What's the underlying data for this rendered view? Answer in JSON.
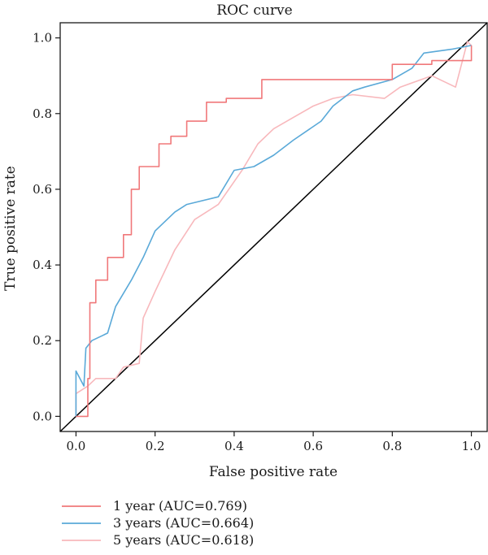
{
  "chart_data": {
    "type": "line",
    "title": "ROC curve",
    "xlabel": "False positive rate",
    "ylabel": "True positive rate",
    "xlim": [
      -0.04,
      1.04
    ],
    "ylim": [
      -0.04,
      1.04
    ],
    "xticks": [
      "0.0",
      "0.2",
      "0.4",
      "0.6",
      "0.8",
      "1.0"
    ],
    "yticks": [
      "0.0",
      "0.2",
      "0.4",
      "0.6",
      "0.8",
      "1.0"
    ],
    "grid": false,
    "legend_position": "bottom-left, below plot",
    "reference_line": {
      "name": "diagonal",
      "points": [
        [
          -0.04,
          -0.04
        ],
        [
          1.04,
          1.04
        ]
      ],
      "color": "#000000"
    },
    "series": [
      {
        "name": "1 year (AUC=0.769)",
        "color": "#f0787a",
        "points": [
          [
            0.0,
            0.0
          ],
          [
            0.03,
            0.0
          ],
          [
            0.03,
            0.1
          ],
          [
            0.035,
            0.1
          ],
          [
            0.035,
            0.3
          ],
          [
            0.05,
            0.3
          ],
          [
            0.05,
            0.36
          ],
          [
            0.08,
            0.36
          ],
          [
            0.08,
            0.42
          ],
          [
            0.12,
            0.42
          ],
          [
            0.12,
            0.48
          ],
          [
            0.14,
            0.48
          ],
          [
            0.14,
            0.6
          ],
          [
            0.16,
            0.6
          ],
          [
            0.16,
            0.66
          ],
          [
            0.21,
            0.66
          ],
          [
            0.21,
            0.72
          ],
          [
            0.24,
            0.72
          ],
          [
            0.24,
            0.74
          ],
          [
            0.28,
            0.74
          ],
          [
            0.28,
            0.78
          ],
          [
            0.33,
            0.78
          ],
          [
            0.33,
            0.83
          ],
          [
            0.38,
            0.83
          ],
          [
            0.38,
            0.84
          ],
          [
            0.47,
            0.84
          ],
          [
            0.47,
            0.89
          ],
          [
            0.8,
            0.89
          ],
          [
            0.8,
            0.93
          ],
          [
            0.9,
            0.93
          ],
          [
            0.9,
            0.94
          ],
          [
            1.0,
            0.94
          ],
          [
            1.0,
            0.98
          ]
        ]
      },
      {
        "name": "3 years (AUC=0.664)",
        "color": "#5aa9d8",
        "points": [
          [
            0.0,
            0.0
          ],
          [
            0.0,
            0.12
          ],
          [
            0.02,
            0.08
          ],
          [
            0.025,
            0.18
          ],
          [
            0.04,
            0.2
          ],
          [
            0.08,
            0.22
          ],
          [
            0.1,
            0.29
          ],
          [
            0.14,
            0.36
          ],
          [
            0.17,
            0.42
          ],
          [
            0.2,
            0.49
          ],
          [
            0.25,
            0.54
          ],
          [
            0.28,
            0.56
          ],
          [
            0.36,
            0.58
          ],
          [
            0.4,
            0.65
          ],
          [
            0.45,
            0.66
          ],
          [
            0.5,
            0.69
          ],
          [
            0.55,
            0.73
          ],
          [
            0.62,
            0.78
          ],
          [
            0.65,
            0.82
          ],
          [
            0.7,
            0.86
          ],
          [
            0.73,
            0.87
          ],
          [
            0.8,
            0.89
          ],
          [
            0.85,
            0.92
          ],
          [
            0.88,
            0.96
          ],
          [
            0.95,
            0.97
          ],
          [
            1.0,
            0.98
          ]
        ]
      },
      {
        "name": "5 years (AUC=0.618)",
        "color": "#f8b8bc",
        "points": [
          [
            0.0,
            0.0
          ],
          [
            0.0,
            0.06
          ],
          [
            0.03,
            0.08
          ],
          [
            0.05,
            0.1
          ],
          [
            0.1,
            0.1
          ],
          [
            0.12,
            0.13
          ],
          [
            0.16,
            0.14
          ],
          [
            0.17,
            0.26
          ],
          [
            0.2,
            0.33
          ],
          [
            0.25,
            0.44
          ],
          [
            0.3,
            0.52
          ],
          [
            0.36,
            0.56
          ],
          [
            0.42,
            0.65
          ],
          [
            0.46,
            0.72
          ],
          [
            0.5,
            0.76
          ],
          [
            0.55,
            0.79
          ],
          [
            0.6,
            0.82
          ],
          [
            0.65,
            0.84
          ],
          [
            0.7,
            0.85
          ],
          [
            0.78,
            0.84
          ],
          [
            0.82,
            0.87
          ],
          [
            0.9,
            0.9
          ],
          [
            0.96,
            0.87
          ],
          [
            0.99,
            0.99
          ],
          [
            1.0,
            0.98
          ]
        ]
      }
    ]
  }
}
